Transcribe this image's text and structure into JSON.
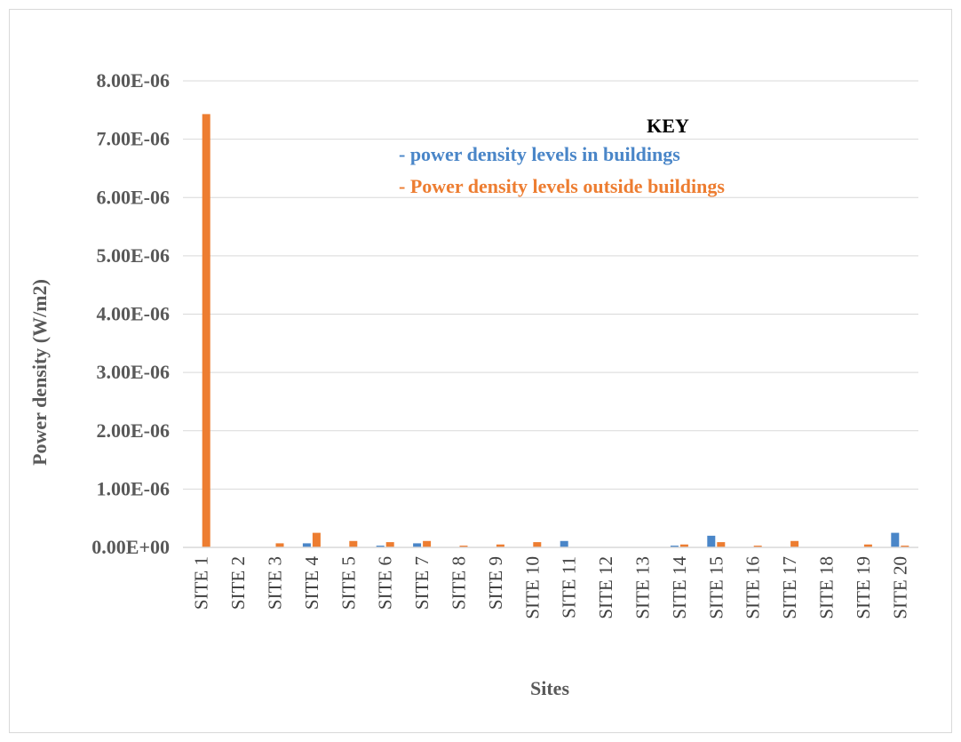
{
  "chart_data": {
    "type": "bar",
    "title": "",
    "xlabel": "Sites",
    "ylabel": "Power density (W/m2)",
    "ylim": [
      0,
      8e-06
    ],
    "yticks": [
      "0.00E+00",
      "1.00E-06",
      "2.00E-06",
      "3.00E-06",
      "4.00E-06",
      "5.00E-06",
      "6.00E-06",
      "7.00E-06",
      "8.00E-06"
    ],
    "grid": true,
    "legend_placement": "top-right",
    "legend_title": "KEY",
    "categories": [
      "SITE 1",
      "SITE 2",
      "SITE 3",
      "SITE 4",
      "SITE 5",
      "SITE 6",
      "SITE 7",
      "SITE 8",
      "SITE 9",
      "SITE 10",
      "SITE 11",
      "SITE 12",
      "SITE 13",
      "SITE 14",
      "SITE 15",
      "SITE 16",
      "SITE 17",
      "SITE 18",
      "SITE 19",
      "SITE 20"
    ],
    "series": [
      {
        "name": "- power density levels in buildings",
        "color": "#4a86c8",
        "values": [
          0,
          0,
          0,
          7e-08,
          0,
          3e-08,
          7e-08,
          0,
          0,
          0,
          1.1e-07,
          0,
          0,
          3e-08,
          2e-07,
          0,
          0,
          0,
          0,
          2.5e-07
        ]
      },
      {
        "name": "- Power density levels outside buildings",
        "color": "#ed7d31",
        "values": [
          7.43e-06,
          0,
          7e-08,
          2.5e-07,
          1.1e-07,
          9e-08,
          1.1e-07,
          3e-08,
          5e-08,
          9e-08,
          0,
          0,
          0,
          5e-08,
          9e-08,
          3e-08,
          1.1e-07,
          0,
          5e-08,
          3e-08
        ]
      }
    ]
  }
}
